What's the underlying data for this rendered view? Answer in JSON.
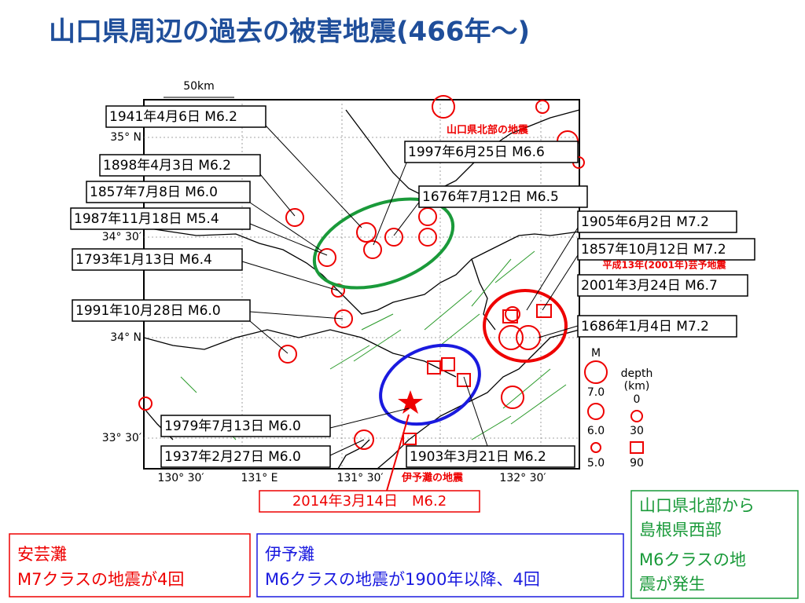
{
  "header": {
    "title": "山口県周辺の過去の被害地震(466年～)"
  },
  "map": {
    "scale_label": "50km",
    "lat_labels": [
      "35° N",
      "34° 30′",
      "34° N",
      "33° 30′"
    ],
    "lon_labels": [
      "130° 30′",
      "131° E",
      "131° 30′",
      "132° 30′"
    ],
    "events": [
      "1941年4月6日 M6.2",
      "1898年4月3日 M6.2",
      "1857年7月8日 M6.0",
      "1987年11月18日 M5.4",
      "1793年1月13日 M6.4",
      "1991年10月28日 M6.0",
      "1979年7月13日 M6.0",
      "1937年2月27日 M6.0",
      "1997年6月25日 M6.6",
      "1676年7月12日 M6.5",
      "1905年6月2日 M7.2",
      "1857年10月12日 M7.2",
      "2001年3月24日 M6.7",
      "1686年1月4日 M7.2",
      "1903年3月21日 M6.2"
    ],
    "annotations": [
      "山口県北部の地震",
      "平成13年(2001年)芸予地震",
      "伊予灘の地震",
      "2014年3月14日　M6.2"
    ],
    "legend": {
      "m_title": "M",
      "m_values": [
        "7.0",
        "6.0",
        "5.0"
      ],
      "depth_title": "depth",
      "depth_unit": "(km)",
      "depth_values": [
        "0",
        "30",
        "90"
      ]
    }
  },
  "notes": [
    {
      "lines": [
        "安芸灘",
        "M7クラスの地震が4回"
      ]
    },
    {
      "lines": [
        "伊予灘",
        "M6クラスの地震が1900年以降、4回"
      ]
    },
    {
      "lines": [
        "山口県北部から",
        "島根県西部",
        "M6クラスの地",
        "震が発生"
      ]
    }
  ]
}
